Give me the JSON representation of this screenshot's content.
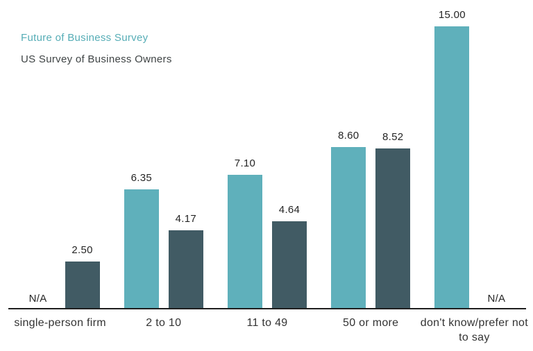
{
  "colors": {
    "series1_bar": "#5FB0BB",
    "series2_bar": "#415B64",
    "axis_line": "#1F1F1F",
    "legend1_text": "#56ADB6",
    "legend2_text": "#3F4445",
    "value_text": "#252525",
    "category_text": "#333333"
  },
  "chart_data": {
    "type": "bar",
    "title": "",
    "xlabel": "",
    "ylabel": "",
    "ylim": [
      0,
      15
    ],
    "grid": false,
    "legend_position": "top-left",
    "value_labels_shown": true,
    "na_text": "N/A",
    "categories": [
      "single-person firm",
      "2 to 10",
      "11 to 49",
      "50 or more",
      "don't know/prefer not to say"
    ],
    "series": [
      {
        "name": "Future of Business Survey",
        "color": "#5FB0BB",
        "values": [
          null,
          6.35,
          7.1,
          8.6,
          15.0
        ],
        "value_labels": [
          "N/A",
          "6.35",
          "7.10",
          "8.60",
          "15.00"
        ]
      },
      {
        "name": "US Survey of Business Owners",
        "color": "#415B64",
        "values": [
          2.5,
          4.17,
          4.64,
          8.52,
          null
        ],
        "value_labels": [
          "2.50",
          "4.17",
          "4.64",
          "8.52",
          "N/A"
        ]
      }
    ]
  }
}
